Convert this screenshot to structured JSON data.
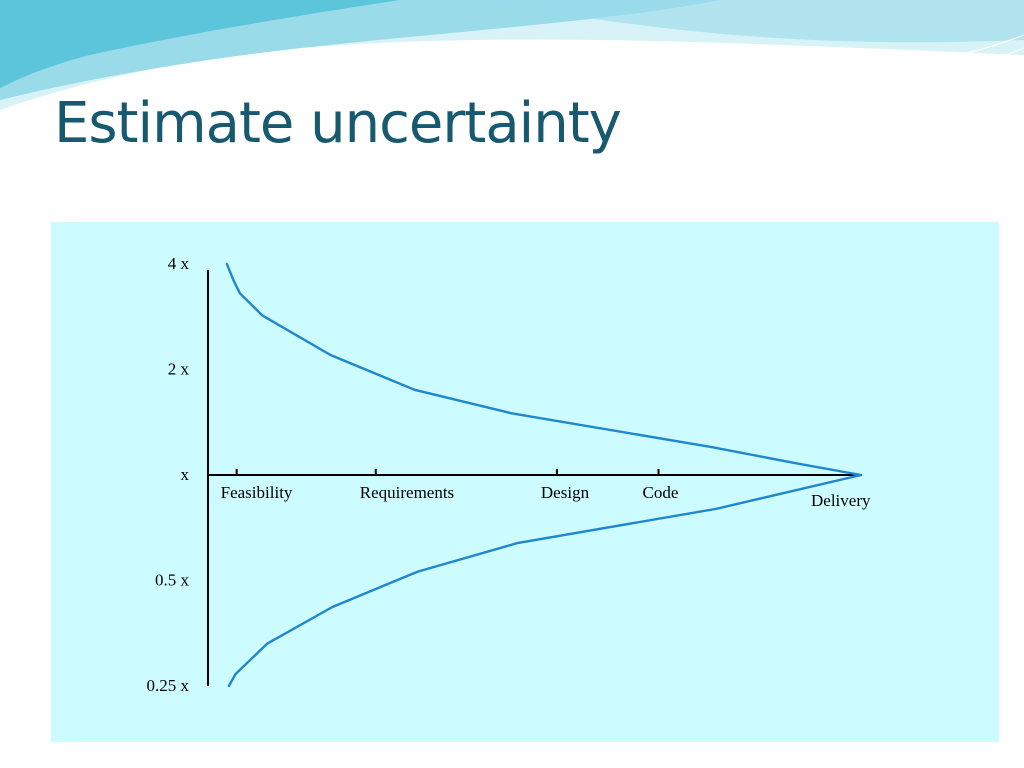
{
  "slide": {
    "title": "Estimate uncertainty"
  },
  "colors": {
    "title": "#17596e",
    "chart_background": "#ccfcff",
    "curve": "#1f86d0",
    "axis": "#000000",
    "wave_light": "#d8f3f8",
    "wave_mid": "#9adbea",
    "wave_dark": "#5cc5db"
  },
  "chart_data": {
    "type": "line",
    "title": "",
    "xlabel": "",
    "ylabel": "",
    "y_scale": "log",
    "y_ticks": [
      {
        "value": 4,
        "label": "4 x"
      },
      {
        "value": 2,
        "label": "2 x"
      },
      {
        "value": 1,
        "label": "x"
      },
      {
        "value": 0.5,
        "label": "0.5 x"
      },
      {
        "value": 0.25,
        "label": "0.25 x"
      }
    ],
    "ylim": [
      0.25,
      4
    ],
    "x_ticks": [
      {
        "pos": 0.035,
        "label": "Feasibility",
        "tick": true
      },
      {
        "pos": 0.25,
        "label": "Requirements",
        "tick": true
      },
      {
        "pos": 0.53,
        "label": "Design",
        "tick": true
      },
      {
        "pos": 0.687,
        "label": "Code",
        "tick": true
      },
      {
        "pos": 1.0,
        "label": "Delivery",
        "tick": false
      }
    ],
    "xlim": [
      0,
      1
    ],
    "grid": false,
    "series": [
      {
        "x": [
          0.02,
          0.03,
          0.04,
          0.075,
          0.18,
          0.31,
          0.46,
          0.77,
          0.9,
          1.0
        ],
        "y": [
          4.0,
          3.6,
          3.3,
          2.85,
          2.2,
          1.75,
          1.5,
          1.2,
          1.08,
          1.0
        ]
      },
      {
        "x": [
          0.023,
          0.033,
          0.082,
          0.183,
          0.315,
          0.47,
          0.775,
          1.0
        ],
        "y": [
          0.25,
          0.27,
          0.33,
          0.42,
          0.53,
          0.64,
          0.8,
          1.0
        ]
      }
    ]
  }
}
